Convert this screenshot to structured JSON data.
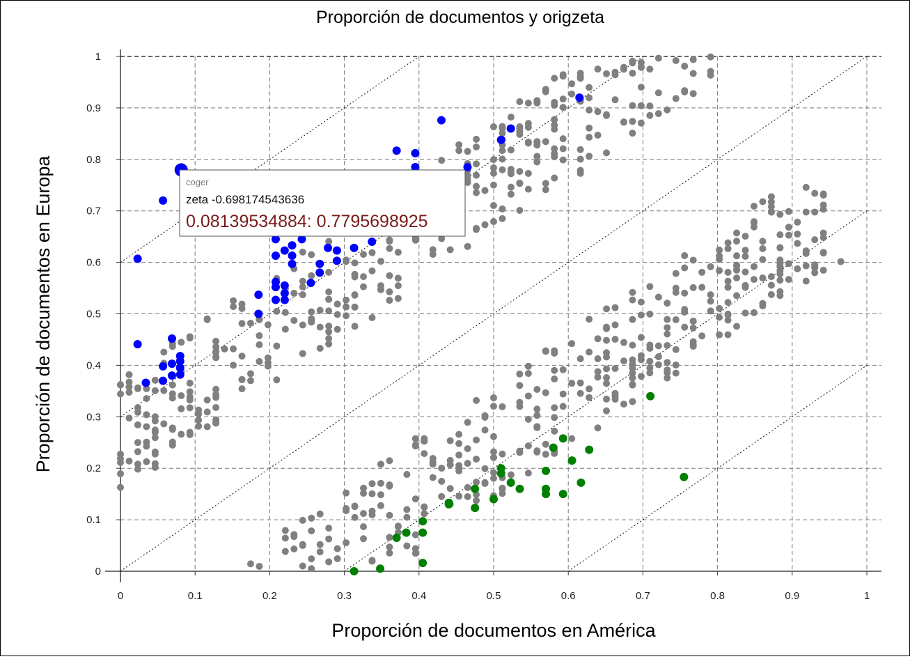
{
  "chart_data": {
    "type": "scatter",
    "title": "Proporción de documentos y origzeta",
    "xlabel": "Proporción de documentos en América",
    "ylabel": "Proporción de documentos en Europa",
    "xlim": [
      0,
      1
    ],
    "ylim": [
      0,
      1
    ],
    "xticks": [
      "0",
      "0.1",
      "0.2",
      "0.3",
      "0.4",
      "0.5",
      "0.6",
      "0.7",
      "0.8",
      "0.9",
      "1"
    ],
    "yticks": [
      "0",
      "0.1",
      "0.2",
      "0.3",
      "0.4",
      "0.5",
      "0.6",
      "0.7",
      "0.8",
      "0.9",
      "1"
    ],
    "grid": true,
    "reference_lines": [
      {
        "intercept": 0.6,
        "slope": 1
      },
      {
        "intercept": 0.3,
        "slope": 1
      },
      {
        "intercept": 0.0,
        "slope": 1
      },
      {
        "intercept": -0.3,
        "slope": 1
      },
      {
        "intercept": -0.6,
        "slope": 1
      }
    ],
    "highlight_point": {
      "x": 0.08139534884,
      "y": 0.7795698925
    },
    "tooltip": {
      "word": "coger",
      "zeta_line": "zeta -0.698174543636",
      "coords_line": "0.08139534884: 0.7795698925"
    },
    "series": [
      {
        "color": "#0000ff",
        "points": [
          [
            0.023,
            0.607
          ],
          [
            0.023,
            0.441
          ],
          [
            0.034,
            0.366
          ],
          [
            0.057,
            0.72
          ],
          [
            0.057,
            0.398
          ],
          [
            0.057,
            0.37
          ],
          [
            0.069,
            0.452
          ],
          [
            0.069,
            0.403
          ],
          [
            0.069,
            0.38
          ],
          [
            0.08,
            0.418
          ],
          [
            0.08,
            0.408
          ],
          [
            0.08,
            0.395
          ],
          [
            0.08,
            0.382
          ],
          [
            0.081,
            0.7796
          ],
          [
            0.185,
            0.537
          ],
          [
            0.185,
            0.5
          ],
          [
            0.208,
            0.645
          ],
          [
            0.208,
            0.613
          ],
          [
            0.208,
            0.562
          ],
          [
            0.208,
            0.552
          ],
          [
            0.208,
            0.527
          ],
          [
            0.22,
            0.623
          ],
          [
            0.22,
            0.555
          ],
          [
            0.22,
            0.54
          ],
          [
            0.22,
            0.527
          ],
          [
            0.23,
            0.633
          ],
          [
            0.23,
            0.613
          ],
          [
            0.23,
            0.597
          ],
          [
            0.243,
            0.645
          ],
          [
            0.255,
            0.56
          ],
          [
            0.267,
            0.597
          ],
          [
            0.267,
            0.58
          ],
          [
            0.278,
            0.628
          ],
          [
            0.29,
            0.623
          ],
          [
            0.29,
            0.603
          ],
          [
            0.313,
            0.628
          ],
          [
            0.337,
            0.64
          ],
          [
            0.36,
            0.73
          ],
          [
            0.37,
            0.817
          ],
          [
            0.395,
            0.812
          ],
          [
            0.395,
            0.785
          ],
          [
            0.43,
            0.876
          ],
          [
            0.465,
            0.785
          ],
          [
            0.51,
            0.838
          ],
          [
            0.523,
            0.86
          ],
          [
            0.615,
            0.92
          ]
        ]
      },
      {
        "color": "#008000",
        "points": [
          [
            0.313,
            0.0
          ],
          [
            0.348,
            0.005
          ],
          [
            0.37,
            0.065
          ],
          [
            0.383,
            0.075
          ],
          [
            0.405,
            0.097
          ],
          [
            0.405,
            0.075
          ],
          [
            0.405,
            0.016
          ],
          [
            0.44,
            0.133
          ],
          [
            0.44,
            0.13
          ],
          [
            0.475,
            0.16
          ],
          [
            0.475,
            0.123
          ],
          [
            0.5,
            0.14
          ],
          [
            0.51,
            0.2
          ],
          [
            0.51,
            0.19
          ],
          [
            0.523,
            0.172
          ],
          [
            0.535,
            0.16
          ],
          [
            0.57,
            0.195
          ],
          [
            0.57,
            0.16
          ],
          [
            0.57,
            0.15
          ],
          [
            0.58,
            0.24
          ],
          [
            0.593,
            0.258
          ],
          [
            0.593,
            0.15
          ],
          [
            0.605,
            0.215
          ],
          [
            0.617,
            0.172
          ],
          [
            0.628,
            0.236
          ],
          [
            0.71,
            0.34
          ],
          [
            0.755,
            0.183
          ]
        ]
      }
    ]
  }
}
